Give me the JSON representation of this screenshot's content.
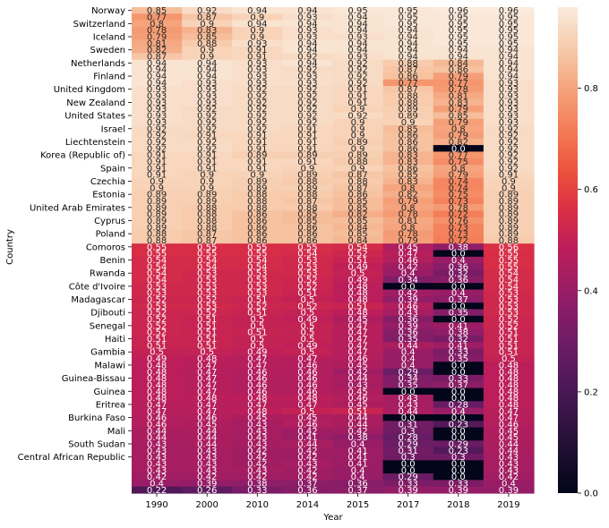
{
  "chart_data": {
    "type": "heatmap",
    "xlabel": "Year",
    "ylabel": "Country",
    "columns": [
      "1990",
      "2000",
      "2010",
      "2014",
      "2015",
      "2017",
      "2018",
      "2019"
    ],
    "row_labels": [
      "Norway",
      "",
      "Switzerland",
      "",
      "Iceland",
      "",
      "Sweden",
      "",
      "Netherlands",
      "",
      "Finland",
      "",
      "United Kingdom",
      "",
      "New Zealand",
      "",
      "United States",
      "",
      "Israel",
      "",
      "Liechtenstein",
      "",
      "Korea (Republic of)",
      "",
      "Spain",
      "",
      "Czechia",
      "",
      "Estonia",
      "",
      "United Arab Emirates",
      "",
      "Cyprus",
      "",
      "Poland",
      "",
      "Comoros",
      "",
      "Benin",
      "",
      "Rwanda",
      "",
      "Côte d'Ivoire",
      "",
      "Madagascar",
      "",
      "Djibouti",
      "",
      "Senegal",
      "",
      "Haiti",
      "",
      "Gambia",
      "",
      "Malawi",
      "",
      "Guinea-Bissau",
      "",
      "Guinea",
      "",
      "Eritrea",
      "",
      "Burkina Faso",
      "",
      "Mali",
      "",
      "South Sudan",
      "",
      "Central African Republic",
      ""
    ],
    "values": [
      [
        "0.85",
        "0.92",
        "0.94",
        "0.94",
        "0.95",
        "0.95",
        "0.96",
        "0.96"
      ],
      [
        "0.77",
        "0.87",
        "0.9",
        "0.93",
        "0.94",
        "0.95",
        "0.95",
        "0.95"
      ],
      [
        "0.8",
        "0.9",
        "0.94",
        "0.94",
        "0.94",
        "0.95",
        "0.95",
        "0.95"
      ],
      [
        "0.78",
        "0.83",
        "0.9",
        "0.93",
        "0.94",
        "0.94",
        "0.95",
        "0.95"
      ],
      [
        "0.79",
        "0.85",
        "0.9",
        "0.93",
        "0.93",
        "0.94",
        "0.95",
        "0.95"
      ],
      [
        "0.81",
        "0.88",
        "0.93",
        "0.94",
        "0.94",
        "0.94",
        "0.95",
        "0.95"
      ],
      [
        "0.82",
        "0.9",
        "0.91",
        "0.94",
        "0.94",
        "0.94",
        "0.94",
        "0.94"
      ],
      [
        "0.87",
        "0.9",
        "0.91",
        "0.92",
        "0.93",
        "0.94",
        "0.94",
        "0.94"
      ],
      [
        "0.94",
        "0.94",
        "0.93",
        "0.94",
        "0.92",
        "0.88",
        "0.84",
        "0.94"
      ],
      [
        "0.94",
        "0.94",
        "0.93",
        "0.92",
        "0.92",
        "0.87",
        "0.86",
        "0.94"
      ],
      [
        "0.94",
        "0.94",
        "0.93",
        "0.93",
        "0.92",
        "0.86",
        "0.79",
        "0.94"
      ],
      [
        "0.94",
        "0.93",
        "0.93",
        "0.93",
        "0.92",
        "0.77",
        "0.77",
        "0.93"
      ],
      [
        "0.93",
        "0.93",
        "0.92",
        "0.92",
        "0.91",
        "0.87",
        "0.78",
        "0.93"
      ],
      [
        "0.93",
        "0.93",
        "0.92",
        "0.92",
        "0.91",
        "0.88",
        "0.81",
        "0.93"
      ],
      [
        "0.93",
        "0.93",
        "0.92",
        "0.92",
        "0.91",
        "0.88",
        "0.83",
        "0.93"
      ],
      [
        "0.93",
        "0.92",
        "0.92",
        "0.92",
        "0.9",
        "0.89",
        "0.79",
        "0.93"
      ],
      [
        "0.93",
        "0.92",
        "0.92",
        "0.92",
        "0.92",
        "0.89",
        "0.85",
        "0.93"
      ],
      [
        "0.93",
        "0.92",
        "0.92",
        "0.92",
        "0.9",
        "0.9",
        "0.79",
        "0.93"
      ],
      [
        "0.92",
        "0.92",
        "0.92",
        "0.91",
        "0.9",
        "0.85",
        "0.8",
        "0.92"
      ],
      [
        "0.92",
        "0.91",
        "0.91",
        "0.91",
        "0.9",
        "0.86",
        "0.79",
        "0.92"
      ],
      [
        "0.92",
        "0.92",
        "0.91",
        "0.91",
        "0.89",
        "0.86",
        "0.82",
        "0.92"
      ],
      [
        "0.92",
        "0.92",
        "0.91",
        "0.91",
        "0.9",
        "0.86",
        "0.0",
        "0.92"
      ],
      [
        "0.91",
        "0.91",
        "0.89",
        "0.89",
        "0.89",
        "0.83",
        "0.77",
        "0.92"
      ],
      [
        "0.91",
        "0.91",
        "0.91",
        "0.91",
        "0.88",
        "0.83",
        "0.75",
        "0.92"
      ],
      [
        "0.91",
        "0.91",
        "0.91",
        "0.9",
        "0.9",
        "0.86",
        "0.8",
        "0.92"
      ],
      [
        "0.91",
        "0.9",
        "0.9",
        "0.89",
        "0.87",
        "0.85",
        "0.79",
        "0.91"
      ],
      [
        "0.9",
        "0.9",
        "0.89",
        "0.88",
        "0.88",
        "0.83",
        "0.74",
        "0.9"
      ],
      [
        "0.9",
        "0.9",
        "0.89",
        "0.89",
        "0.87",
        "0.8",
        "0.74",
        "0.9"
      ],
      [
        "0.89",
        "0.89",
        "0.88",
        "0.88",
        "0.86",
        "0.82",
        "0.75",
        "0.89"
      ],
      [
        "0.89",
        "0.89",
        "0.88",
        "0.87",
        "0.85",
        "0.79",
        "0.73",
        "0.89"
      ],
      [
        "0.89",
        "0.88",
        "0.88",
        "0.88",
        "0.85",
        "0.8",
        "0.78",
        "0.89"
      ],
      [
        "0.89",
        "0.88",
        "0.86",
        "0.85",
        "0.82",
        "0.78",
        "0.72",
        "0.89"
      ],
      [
        "0.89",
        "0.88",
        "0.86",
        "0.85",
        "0.85",
        "0.81",
        "0.76",
        "0.89"
      ],
      [
        "0.89",
        "0.88",
        "0.86",
        "0.86",
        "0.84",
        "0.8",
        "0.73",
        "0.89"
      ],
      [
        "0.88",
        "0.87",
        "0.86",
        "0.86",
        "0.85",
        "0.78",
        "0.73",
        "0.89"
      ],
      [
        "0.88",
        "0.87",
        "0.86",
        "0.86",
        "0.84",
        "0.79",
        "0.72",
        "0.88"
      ],
      [
        "0.55",
        "0.55",
        "0.55",
        "0.55",
        "0.54",
        "0.45",
        "0.38",
        "0.56"
      ],
      [
        "0.55",
        "0.55",
        "0.55",
        "0.54",
        "0.52",
        "0.47",
        "0.0",
        "0.55"
      ],
      [
        "0.54",
        "0.54",
        "0.54",
        "0.53",
        "0.51",
        "0.46",
        "0.4",
        "0.55"
      ],
      [
        "0.54",
        "0.54",
        "0.54",
        "0.53",
        "0.49",
        "0.42",
        "0.36",
        "0.55"
      ],
      [
        "0.54",
        "0.53",
        "0.53",
        "0.53",
        "0.5",
        "0.4",
        "0.32",
        "0.54"
      ],
      [
        "0.54",
        "0.53",
        "0.53",
        "0.52",
        "0.49",
        "0.34",
        "0.36",
        "0.54"
      ],
      [
        "0.53",
        "0.53",
        "0.53",
        "0.52",
        "0.48",
        "0.0",
        "0.0",
        "0.54"
      ],
      [
        "0.53",
        "0.53",
        "0.53",
        "0.51",
        "0.48",
        "0.42",
        "0.4",
        "0.53"
      ],
      [
        "0.52",
        "0.52",
        "0.51",
        "0.5",
        "0.48",
        "0.39",
        "0.37",
        "0.53"
      ],
      [
        "0.53",
        "0.53",
        "0.52",
        "0.52",
        "0.51",
        "0.46",
        "0.0",
        "0.53"
      ],
      [
        "0.52",
        "0.52",
        "0.51",
        "0.5",
        "0.48",
        "0.43",
        "0.35",
        "0.53"
      ],
      [
        "0.52",
        "0.51",
        "0.5",
        "0.49",
        "0.45",
        "0.36",
        "0.0",
        "0.52"
      ],
      [
        "0.52",
        "0.51",
        "0.5",
        "0.5",
        "0.47",
        "0.39",
        "0.41",
        "0.52"
      ],
      [
        "0.52",
        "0.51",
        "0.51",
        "0.5",
        "0.47",
        "0.36",
        "0.38",
        "0.51"
      ],
      [
        "0.51",
        "0.51",
        "0.5",
        "0.5",
        "0.47",
        "0.35",
        "0.32",
        "0.51"
      ],
      [
        "0.51",
        "0.51",
        "0.5",
        "0.49",
        "0.47",
        "0.44",
        "0.41",
        "0.51"
      ],
      [
        "0.5",
        "0.5",
        "0.49",
        "0.5",
        "0.47",
        "0.4",
        "0.33",
        "0.51"
      ],
      [
        "0.49",
        "0.48",
        "0.47",
        "0.47",
        "0.46",
        "0.4",
        "0.35",
        "0.5"
      ],
      [
        "0.48",
        "0.47",
        "0.47",
        "0.46",
        "0.45",
        "0.4",
        "0.0",
        "0.48"
      ],
      [
        "0.48",
        "0.47",
        "0.46",
        "0.46",
        "0.42",
        "0.29",
        "0.0",
        "0.48"
      ],
      [
        "0.48",
        "0.47",
        "0.46",
        "0.46",
        "0.44",
        "0.34",
        "0.33",
        "0.48"
      ],
      [
        "0.48",
        "0.47",
        "0.46",
        "0.46",
        "0.43",
        "0.35",
        "0.37",
        "0.48"
      ],
      [
        "0.48",
        "0.47",
        "0.46",
        "0.46",
        "0.45",
        "0.0",
        "0.0",
        "0.48"
      ],
      [
        "0.48",
        "0.48",
        "0.48",
        "0.48",
        "0.46",
        "0.43",
        "0.0",
        "0.48"
      ],
      [
        "0.47",
        "0.47",
        "0.47",
        "0.47",
        "0.45",
        "0.43",
        "0.28",
        "0.48"
      ],
      [
        "0.47",
        "0.47",
        "0.48",
        "0.5",
        "0.51",
        "0.44",
        "0.4",
        "0.47"
      ],
      [
        "0.46",
        "0.46",
        "0.45",
        "0.45",
        "0.44",
        "0.0",
        "0.0",
        "0.47"
      ],
      [
        "0.46",
        "0.45",
        "0.43",
        "0.46",
        "0.44",
        "0.31",
        "0.23",
        "0.46"
      ],
      [
        "0.44",
        "0.44",
        "0.43",
        "0.42",
        "0.42",
        "0.3",
        "0.0",
        "0.45"
      ],
      [
        "0.44",
        "0.44",
        "0.43",
        "0.41",
        "0.38",
        "0.28",
        "0.0",
        "0.45"
      ],
      [
        "0.43",
        "0.44",
        "0.43",
        "0.44",
        "0.4",
        "0.29",
        "0.29",
        "0.44"
      ],
      [
        "0.43",
        "0.43",
        "0.42",
        "0.42",
        "0.41",
        "0.31",
        "0.23",
        "0.44"
      ],
      [
        "0.43",
        "0.43",
        "0.42",
        "0.42",
        "0.41",
        "0.3",
        "0.3",
        "0.43"
      ],
      [
        "0.43",
        "0.43",
        "0.42",
        "0.43",
        "0.41",
        "0.0",
        "0.0",
        "0.43"
      ],
      [
        "0.43",
        "0.43",
        "0.43",
        "0.42",
        "0.4",
        "0.0",
        "0.0",
        "0.43"
      ],
      [
        "0.42",
        "0.42",
        "0.42",
        "0.42",
        "0.4",
        "0.29",
        "0.0",
        "0.42"
      ],
      [
        "0.4",
        "0.39",
        "0.38",
        "0.37",
        "0.36",
        "0.33",
        "0.33",
        "0.4"
      ],
      [
        "0.22",
        "0.26",
        "0.33",
        "0.36",
        "0.37",
        "0.39",
        "0.39",
        "0.39"
      ]
    ],
    "colorbar": {
      "min": 0.0,
      "max": 0.96,
      "ticks": [
        "0.0",
        "0.2",
        "0.4",
        "0.6",
        "0.8"
      ]
    },
    "colormap": "rocket"
  }
}
